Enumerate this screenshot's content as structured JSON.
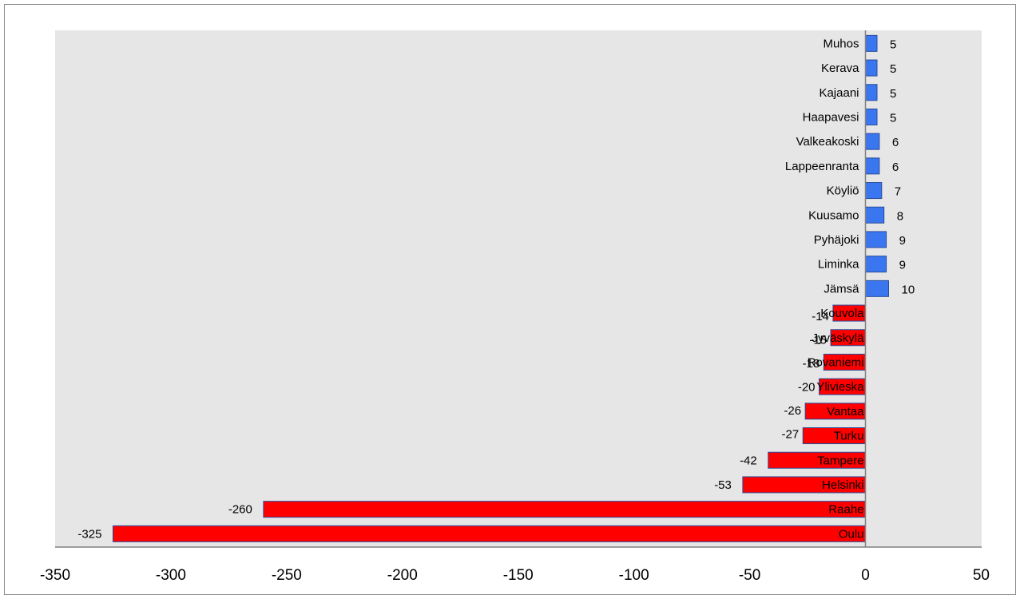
{
  "chart_data": {
    "type": "bar",
    "orientation": "horizontal",
    "categories": [
      "Muhos",
      "Kerava",
      "Kajaani",
      "Haapavesi",
      "Valkeakoski",
      "Lappeenranta",
      "Köyliö",
      "Kuusamo",
      "Pyhäjoki",
      "Liminka",
      "Jämsä",
      "Kouvola",
      "Jyväskylä",
      "Rovaniemi",
      "Ylivieska",
      "Vantaa",
      "Turku",
      "Tampere",
      "Helsinki",
      "Raahe",
      "Oulu"
    ],
    "values": [
      5,
      5,
      5,
      5,
      6,
      6,
      7,
      8,
      9,
      9,
      10,
      -14,
      -15,
      -18,
      -20,
      -26,
      -27,
      -42,
      -53,
      -260,
      -325
    ],
    "value_labels": [
      "5",
      "5",
      "5",
      "5",
      "6",
      "6",
      "7",
      "8",
      "9",
      "9",
      "10",
      "-14",
      "-15",
      "-18",
      "-20",
      "-26",
      "-27",
      "-42",
      "-53",
      "-260",
      "-325"
    ],
    "xlim": [
      -350,
      50
    ],
    "x_ticks": [
      -350,
      -300,
      -250,
      -200,
      -150,
      -100,
      -50,
      0,
      50
    ],
    "x_tick_labels": [
      "-350",
      "-300",
      "-250",
      "-200",
      "-150",
      "-100",
      "-50",
      "0",
      "50"
    ],
    "grid": false,
    "legend": "none",
    "colors": {
      "positive": "#3a76f0",
      "negative": "#ff0000",
      "bar_border": "#2a4b9b",
      "plot_background": "#e6e6e6",
      "axis": "#808080"
    }
  }
}
